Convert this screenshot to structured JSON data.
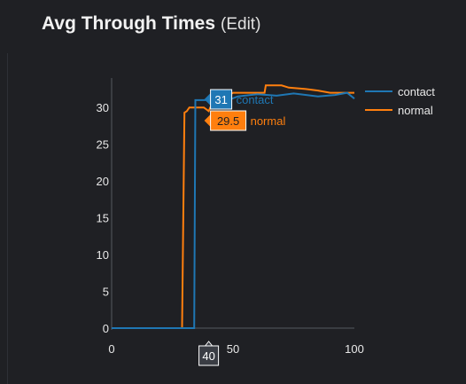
{
  "header": {
    "title": "Avg Through Times",
    "edit_label": "(Edit)"
  },
  "colors": {
    "background": "#1f2024",
    "contact": "#1f77b4",
    "normal": "#ff7f0e",
    "axis_text": "#e8e8e8"
  },
  "chart_data": {
    "type": "line",
    "title": "",
    "xlabel": "",
    "ylabel": "",
    "xlim": [
      0,
      100
    ],
    "ylim": [
      0,
      34
    ],
    "x_ticks": [
      0,
      50,
      100
    ],
    "y_ticks": [
      0,
      5,
      10,
      15,
      20,
      25,
      30
    ],
    "grid": false,
    "legend_position": "right",
    "series": [
      {
        "name": "contact",
        "color": "#1f77b4",
        "points": [
          [
            0,
            0
          ],
          [
            33,
            0
          ],
          [
            34,
            0
          ],
          [
            34.5,
            31
          ],
          [
            40,
            31
          ],
          [
            45,
            31
          ],
          [
            48,
            31
          ],
          [
            52,
            31.5
          ],
          [
            60,
            31.8
          ],
          [
            68,
            31.6
          ],
          [
            75,
            31.9
          ],
          [
            85,
            31.5
          ],
          [
            92,
            31.7
          ],
          [
            97,
            32
          ],
          [
            100,
            31.2
          ]
        ]
      },
      {
        "name": "normal",
        "color": "#ff7f0e",
        "points": [
          [
            0,
            0
          ],
          [
            29,
            0
          ],
          [
            30,
            29.3
          ],
          [
            31,
            29.5
          ],
          [
            32,
            30
          ],
          [
            38,
            30
          ],
          [
            40,
            29.5
          ],
          [
            42,
            31
          ],
          [
            45,
            31
          ],
          [
            50,
            32
          ],
          [
            63,
            32
          ],
          [
            63.5,
            33
          ],
          [
            70,
            33
          ],
          [
            73,
            32.7
          ],
          [
            80,
            32.5
          ],
          [
            85,
            32.3
          ],
          [
            90,
            32
          ],
          [
            100,
            32
          ]
        ]
      }
    ],
    "hover": {
      "x_value": "40",
      "labels": [
        {
          "value": "31",
          "series": "contact"
        },
        {
          "value": "29.5",
          "series": "normal"
        }
      ]
    }
  }
}
